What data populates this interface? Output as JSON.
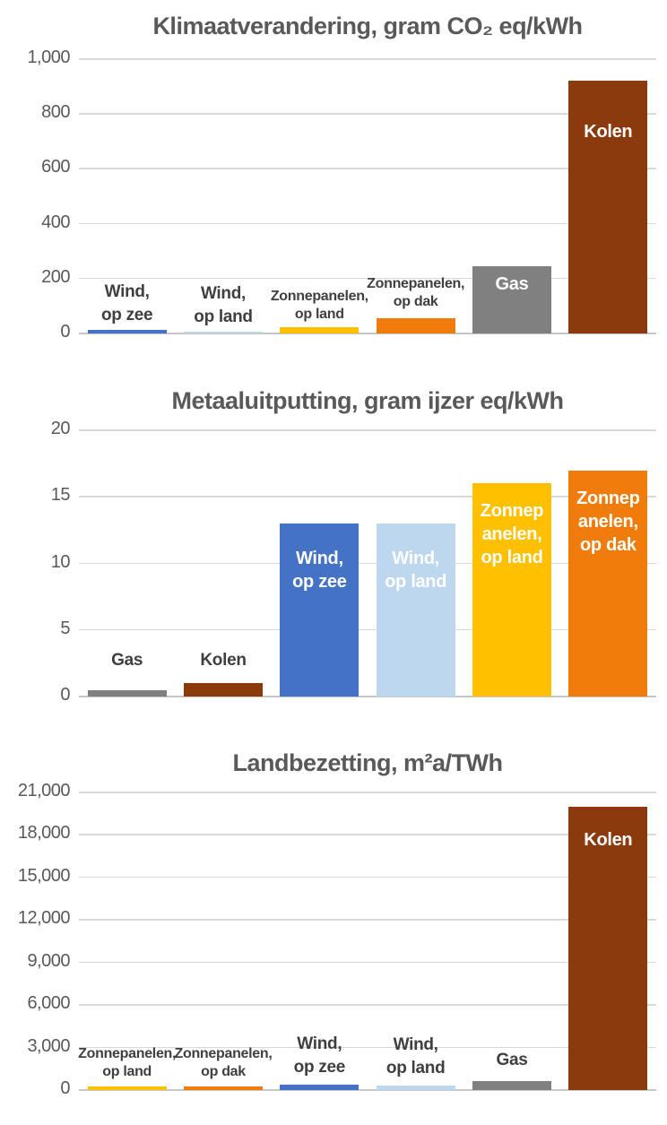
{
  "page": {
    "background": "#ffffff",
    "grid_color": "#d9d9d9",
    "axis_color": "#c6c6c6"
  },
  "colors": {
    "wind_op_zee": "#4472C4",
    "wind_op_land": "#BDD7EE",
    "zonnepanelen_op_land": "#FFC000",
    "zonnepanelen_op_dak": "#F07D0B",
    "gas": "#808080",
    "kolen": "#8B3A0D"
  },
  "text_colors": {
    "title": "#595959",
    "tick": "#595959",
    "label_dark": "#3f3f3f",
    "label_white": "#ffffff"
  },
  "chart_data": [
    {
      "type": "bar",
      "title": "Klimaatverandering, gram CO₂ eq/kWh",
      "xlabel": "",
      "ylabel": "",
      "ylim": [
        0,
        1000
      ],
      "grid": true,
      "legend": "none",
      "yticks": [
        {
          "value": 0,
          "label": "0"
        },
        {
          "value": 200,
          "label": "200"
        },
        {
          "value": 400,
          "label": "400"
        },
        {
          "value": 600,
          "label": "600"
        },
        {
          "value": 800,
          "label": "800"
        },
        {
          "value": 1000,
          "label": "1,000"
        }
      ],
      "categories": [
        "Wind, op zee",
        "Wind, op land",
        "Zonnepanelen, op land",
        "Zonnepanelen, op dak",
        "Gas",
        "Kolen"
      ],
      "values": [
        12,
        8,
        22,
        55,
        245,
        920
      ],
      "bars": [
        {
          "category": "Wind, op zee",
          "label_lines": [
            "Wind,",
            "op zee"
          ],
          "value": 12,
          "color_key": "wind_op_zee",
          "label_placement": "above",
          "label_style": "dark-lg",
          "label_gap": 3
        },
        {
          "category": "Wind, op land",
          "label_lines": [
            "Wind,",
            "op land"
          ],
          "value": 8,
          "color_key": "wind_op_land",
          "label_placement": "above",
          "label_style": "dark-lg",
          "label_gap": 3
        },
        {
          "category": "Zonnepanelen, op land",
          "label_lines": [
            "Zonnepanelen,",
            "op land"
          ],
          "value": 22,
          "color_key": "zonnepanelen_op_land",
          "label_placement": "above",
          "label_style": "dark-sm",
          "label_gap": 4
        },
        {
          "category": "Zonnepanelen, op dak",
          "label_lines": [
            "Zonnepanelen,",
            "op dak"
          ],
          "value": 55,
          "color_key": "zonnepanelen_op_dak",
          "label_placement": "above",
          "label_style": "dark-sm",
          "label_gap": 8
        },
        {
          "category": "Gas",
          "label_lines": [
            "Gas"
          ],
          "value": 245,
          "color_key": "gas",
          "label_placement": "inside",
          "label_style": "white-lg",
          "label_pad": 7
        },
        {
          "category": "Kolen",
          "label_lines": [
            "Kolen"
          ],
          "value": 920,
          "color_key": "kolen",
          "label_placement": "inside",
          "label_style": "white-lg",
          "label_pad": 44
        }
      ]
    },
    {
      "type": "bar",
      "title": "Metaaluitputting, gram ijzer eq/kWh",
      "xlabel": "",
      "ylabel": "",
      "ylim": [
        0,
        20
      ],
      "grid": true,
      "legend": "none",
      "yticks": [
        {
          "value": 0,
          "label": "0"
        },
        {
          "value": 5,
          "label": "5"
        },
        {
          "value": 10,
          "label": "10"
        },
        {
          "value": 15,
          "label": "15"
        },
        {
          "value": 20,
          "label": "20"
        }
      ],
      "categories": [
        "Gas",
        "Kolen",
        "Wind, op zee",
        "Wind, op land",
        "Zonnepanelen, op land",
        "Zonnepanelen, op dak"
      ],
      "values": [
        0.5,
        1,
        13,
        13,
        16,
        17
      ],
      "bars": [
        {
          "category": "Gas",
          "label_lines": [
            "Gas"
          ],
          "value": 0.5,
          "color_key": "gas",
          "label_placement": "above",
          "label_style": "dark-lg",
          "label_gap": 20
        },
        {
          "category": "Kolen",
          "label_lines": [
            "Kolen"
          ],
          "value": 1,
          "color_key": "kolen",
          "label_placement": "above",
          "label_style": "dark-lg",
          "label_gap": 12
        },
        {
          "category": "Wind, op zee",
          "label_lines": [
            "Wind,",
            "op zee"
          ],
          "value": 13,
          "color_key": "wind_op_zee",
          "label_placement": "inside",
          "label_style": "white-lg",
          "label_pad": 26
        },
        {
          "category": "Wind, op land",
          "label_lines": [
            "Wind,",
            "op land"
          ],
          "value": 13,
          "color_key": "wind_op_land",
          "label_placement": "inside",
          "label_style": "white-lg",
          "label_pad": 26
        },
        {
          "category": "Zonnepanelen, op land",
          "label_lines": [
            "Zonnep",
            "anelen,",
            "op land"
          ],
          "value": 16,
          "color_key": "zonnepanelen_op_land",
          "label_placement": "inside",
          "label_style": "white-lg",
          "label_pad": 18
        },
        {
          "category": "Zonnepanelen, op dak",
          "label_lines": [
            "Zonnep",
            "anelen,",
            "op dak"
          ],
          "value": 17,
          "color_key": "zonnepanelen_op_dak",
          "label_placement": "inside",
          "label_style": "white-lg",
          "label_pad": 18
        }
      ]
    },
    {
      "type": "bar",
      "title": "Landbezetting, m²a/TWh",
      "xlabel": "",
      "ylabel": "",
      "ylim": [
        0,
        21000
      ],
      "grid": true,
      "legend": "none",
      "yticks": [
        {
          "value": 0,
          "label": "0"
        },
        {
          "value": 3000,
          "label": "3,000"
        },
        {
          "value": 6000,
          "label": "6,000"
        },
        {
          "value": 9000,
          "label": "9,000"
        },
        {
          "value": 12000,
          "label": "12,000"
        },
        {
          "value": 15000,
          "label": "15,000"
        },
        {
          "value": 18000,
          "label": "18,000"
        },
        {
          "value": 21000,
          "label": "21,000"
        }
      ],
      "categories": [
        "Zonnepanelen, op land",
        "Zonnepanelen, op dak",
        "Wind, op zee",
        "Wind, op land",
        "Gas",
        "Kolen"
      ],
      "values": [
        250,
        250,
        350,
        300,
        650,
        20000
      ],
      "bars": [
        {
          "category": "Zonnepanelen, op land",
          "label_lines": [
            "Zonnepanelen,",
            "op land"
          ],
          "value": 250,
          "color_key": "zonnepanelen_op_land",
          "label_placement": "above",
          "label_style": "dark-sm",
          "label_gap": 6
        },
        {
          "category": "Zonnepanelen, op dak",
          "label_lines": [
            "Zonnepanelen,",
            "op dak"
          ],
          "value": 250,
          "color_key": "zonnepanelen_op_dak",
          "label_placement": "above",
          "label_style": "dark-sm",
          "label_gap": 6
        },
        {
          "category": "Wind, op zee",
          "label_lines": [
            "Wind,",
            "op zee"
          ],
          "value": 350,
          "color_key": "wind_op_zee",
          "label_placement": "above",
          "label_style": "dark-lg",
          "label_gap": 6
        },
        {
          "category": "Wind, op land",
          "label_lines": [
            "Wind,",
            "op land"
          ],
          "value": 300,
          "color_key": "wind_op_land",
          "label_placement": "above",
          "label_style": "dark-lg",
          "label_gap": 6
        },
        {
          "category": "Gas",
          "label_lines": [
            "Gas"
          ],
          "value": 650,
          "color_key": "gas",
          "label_placement": "above",
          "label_style": "dark-lg",
          "label_gap": 10
        },
        {
          "category": "Kolen",
          "label_lines": [
            "Kolen"
          ],
          "value": 20000,
          "color_key": "kolen",
          "label_placement": "inside",
          "label_style": "white-lg",
          "label_pad": 24
        }
      ]
    }
  ]
}
